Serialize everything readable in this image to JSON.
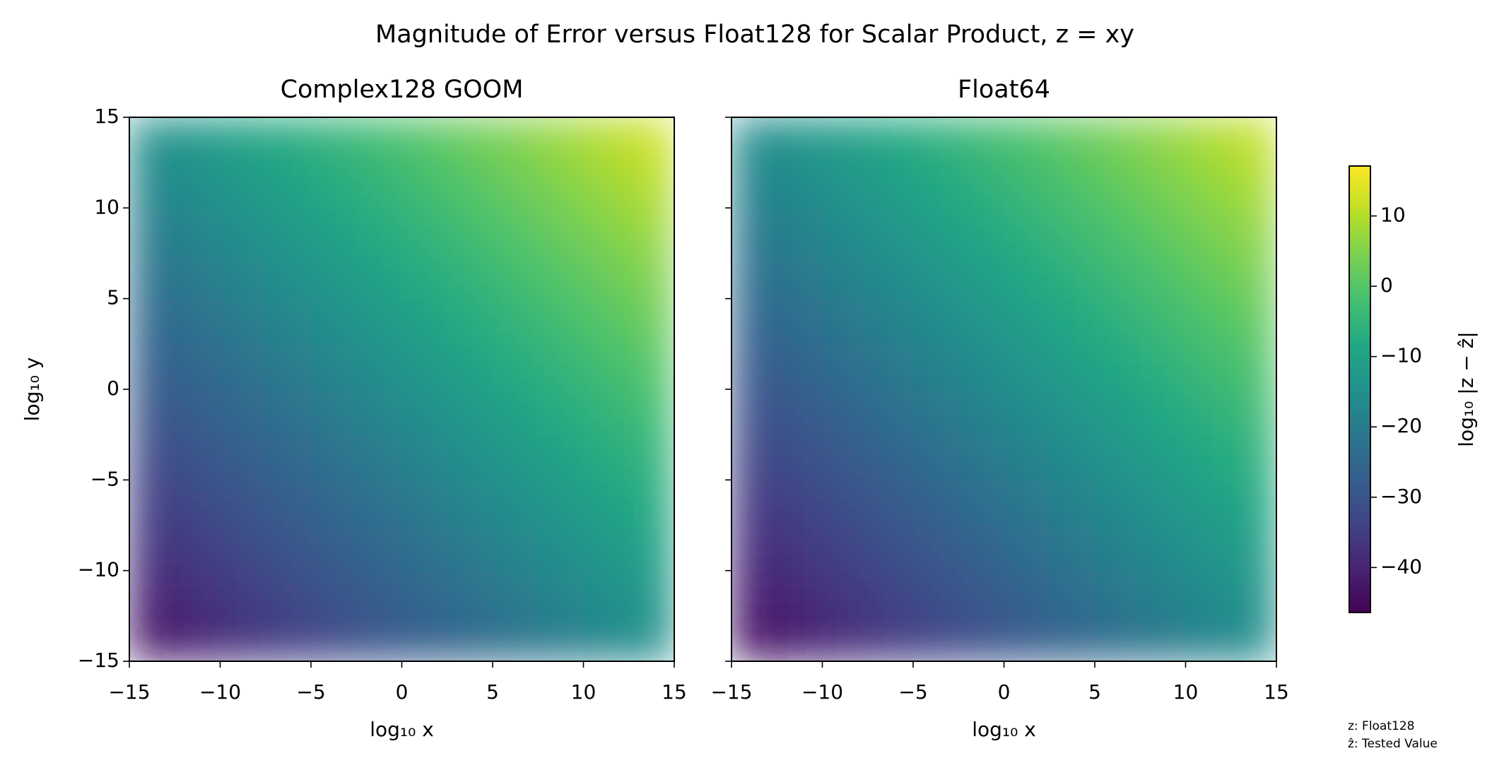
{
  "chart_data": {
    "type": "heatmap",
    "title": "Magnitude of Error versus Float128 for Scalar Product, z = xy",
    "xlabel": "log₁₀ x",
    "ylabel": "log₁₀ y",
    "xlim": [
      -15,
      15
    ],
    "ylim": [
      -15,
      15
    ],
    "xticks": [
      {
        "value": -15,
        "label": "−15"
      },
      {
        "value": -10,
        "label": "−10"
      },
      {
        "value": -5,
        "label": "−5"
      },
      0,
      5,
      10,
      15
    ],
    "yticks": [
      {
        "value": -15,
        "label": "−15"
      },
      {
        "value": -10,
        "label": "−10"
      },
      {
        "value": -5,
        "label": "−5"
      },
      0,
      5,
      10,
      15
    ],
    "x": [
      -13.75,
      -11.25,
      -8.75,
      -6.25,
      -3.75,
      -1.25,
      1.25,
      3.75,
      6.25,
      8.75,
      11.25,
      13.75
    ],
    "y": [
      -13.75,
      -11.25,
      -8.75,
      -6.25,
      -3.75,
      -1.25,
      1.25,
      3.75,
      6.25,
      8.75,
      11.25,
      13.75
    ],
    "colormap": "viridis",
    "colorbar": {
      "label": "log₁₀ |z − ẑ|",
      "clim": [
        -46.4,
        17.1
      ],
      "ticks": [
        {
          "value": -40,
          "label": "−40"
        },
        {
          "value": -30,
          "label": "−30"
        },
        {
          "value": -20,
          "label": "−20"
        },
        {
          "value": -10,
          "label": "−10"
        },
        0,
        10
      ]
    },
    "notes": [
      "z: Float128",
      "ẑ: Tested Value"
    ],
    "panels": [
      {
        "title": "Complex128 GOOM",
        "values": [
          [
            -42.5,
            -40,
            -37.5,
            -35,
            -32.5,
            -30,
            -27.5,
            -25,
            -22.5,
            -20,
            -17.5,
            -15
          ],
          [
            -40,
            -37.5,
            -35,
            -32.5,
            -30,
            -27.5,
            -25,
            -22.5,
            -20,
            -17.5,
            -15,
            -12.5
          ],
          [
            -37.5,
            -35,
            -32.5,
            -30,
            -27.5,
            -25,
            -22.5,
            -20,
            -17.5,
            -15,
            -12.5,
            -10
          ],
          [
            -35,
            -32.5,
            -30,
            -27.5,
            -25,
            -22.5,
            -20,
            -17.5,
            -15,
            -12.5,
            -10,
            -7.5
          ],
          [
            -32.5,
            -30,
            -27.5,
            -25,
            -22.5,
            -20,
            -17.5,
            -15,
            -12.5,
            -10,
            -7.5,
            -5
          ],
          [
            -30,
            -27.5,
            -25,
            -22.5,
            -20,
            -17.5,
            -15,
            -12.5,
            -10,
            -7.5,
            -5,
            -2.5
          ],
          [
            -27.5,
            -25,
            -22.5,
            -20,
            -17.5,
            -15,
            -12.5,
            -10,
            -7.5,
            -5,
            -2.5,
            0
          ],
          [
            -25,
            -22.5,
            -20,
            -17.5,
            -15,
            -12.5,
            -10,
            -7.5,
            -5,
            -2.5,
            0,
            2.5
          ],
          [
            -22.5,
            -20,
            -17.5,
            -15,
            -12.5,
            -10,
            -7.5,
            -5,
            -2.5,
            0,
            2.5,
            5
          ],
          [
            -20,
            -17.5,
            -15,
            -12.5,
            -10,
            -7.5,
            -5,
            -2.5,
            0,
            2.5,
            5,
            7.5
          ],
          [
            -17.5,
            -15,
            -12.5,
            -10,
            -7.5,
            -5,
            -2.5,
            0,
            2.5,
            5,
            7.5,
            10
          ],
          [
            -15,
            -12.5,
            -10,
            -7.5,
            -5,
            -2.5,
            0,
            2.5,
            5,
            7.5,
            10,
            12.5
          ]
        ]
      },
      {
        "title": "Float64",
        "values": [
          [
            -43.5,
            -41,
            -38.5,
            -36,
            -33.5,
            -31,
            -28.5,
            -26,
            -23.5,
            -21,
            -18.5,
            -16
          ],
          [
            -41,
            -38.5,
            -36,
            -33.5,
            -31,
            -28.5,
            -26,
            -23.5,
            -21,
            -18.5,
            -16,
            -13.5
          ],
          [
            -38.5,
            -36,
            -33.5,
            -31,
            -28.5,
            -26,
            -23.5,
            -21,
            -18.5,
            -16,
            -13.5,
            -11
          ],
          [
            -36,
            -33.5,
            -31,
            -28.5,
            -26,
            -23.5,
            -21,
            -18.5,
            -16,
            -13.5,
            -11,
            -8.5
          ],
          [
            -33.5,
            -31,
            -28.5,
            -26,
            -23.5,
            -21,
            -18.5,
            -16,
            -13.5,
            -11,
            -8.5,
            -6
          ],
          [
            -31,
            -28.5,
            -26,
            -23.5,
            -21,
            -18.5,
            -16,
            -13.5,
            -11,
            -8.5,
            -6,
            -3.5
          ],
          [
            -28.5,
            -26,
            -23.5,
            -21,
            -18.5,
            -16,
            -13.5,
            -11,
            -8.5,
            -6,
            -3.5,
            -1
          ],
          [
            -26,
            -23.5,
            -21,
            -18.5,
            -16,
            -13.5,
            -11,
            -8.5,
            -6,
            -3.5,
            -1,
            1.5
          ],
          [
            -23.5,
            -21,
            -18.5,
            -16,
            -13.5,
            -11,
            -8.5,
            -6,
            -3.5,
            -1,
            1.5,
            4
          ],
          [
            -21,
            -18.5,
            -16,
            -13.5,
            -11,
            -8.5,
            -6,
            -3.5,
            -1,
            1.5,
            4,
            6.5
          ],
          [
            -18.5,
            -16,
            -13.5,
            -11,
            -8.5,
            -6,
            -3.5,
            -1,
            1.5,
            4,
            6.5,
            9
          ],
          [
            -16,
            -13.5,
            -11,
            -8.5,
            -6,
            -3.5,
            -1,
            1.5,
            4,
            6.5,
            9,
            11.5
          ]
        ]
      }
    ]
  }
}
